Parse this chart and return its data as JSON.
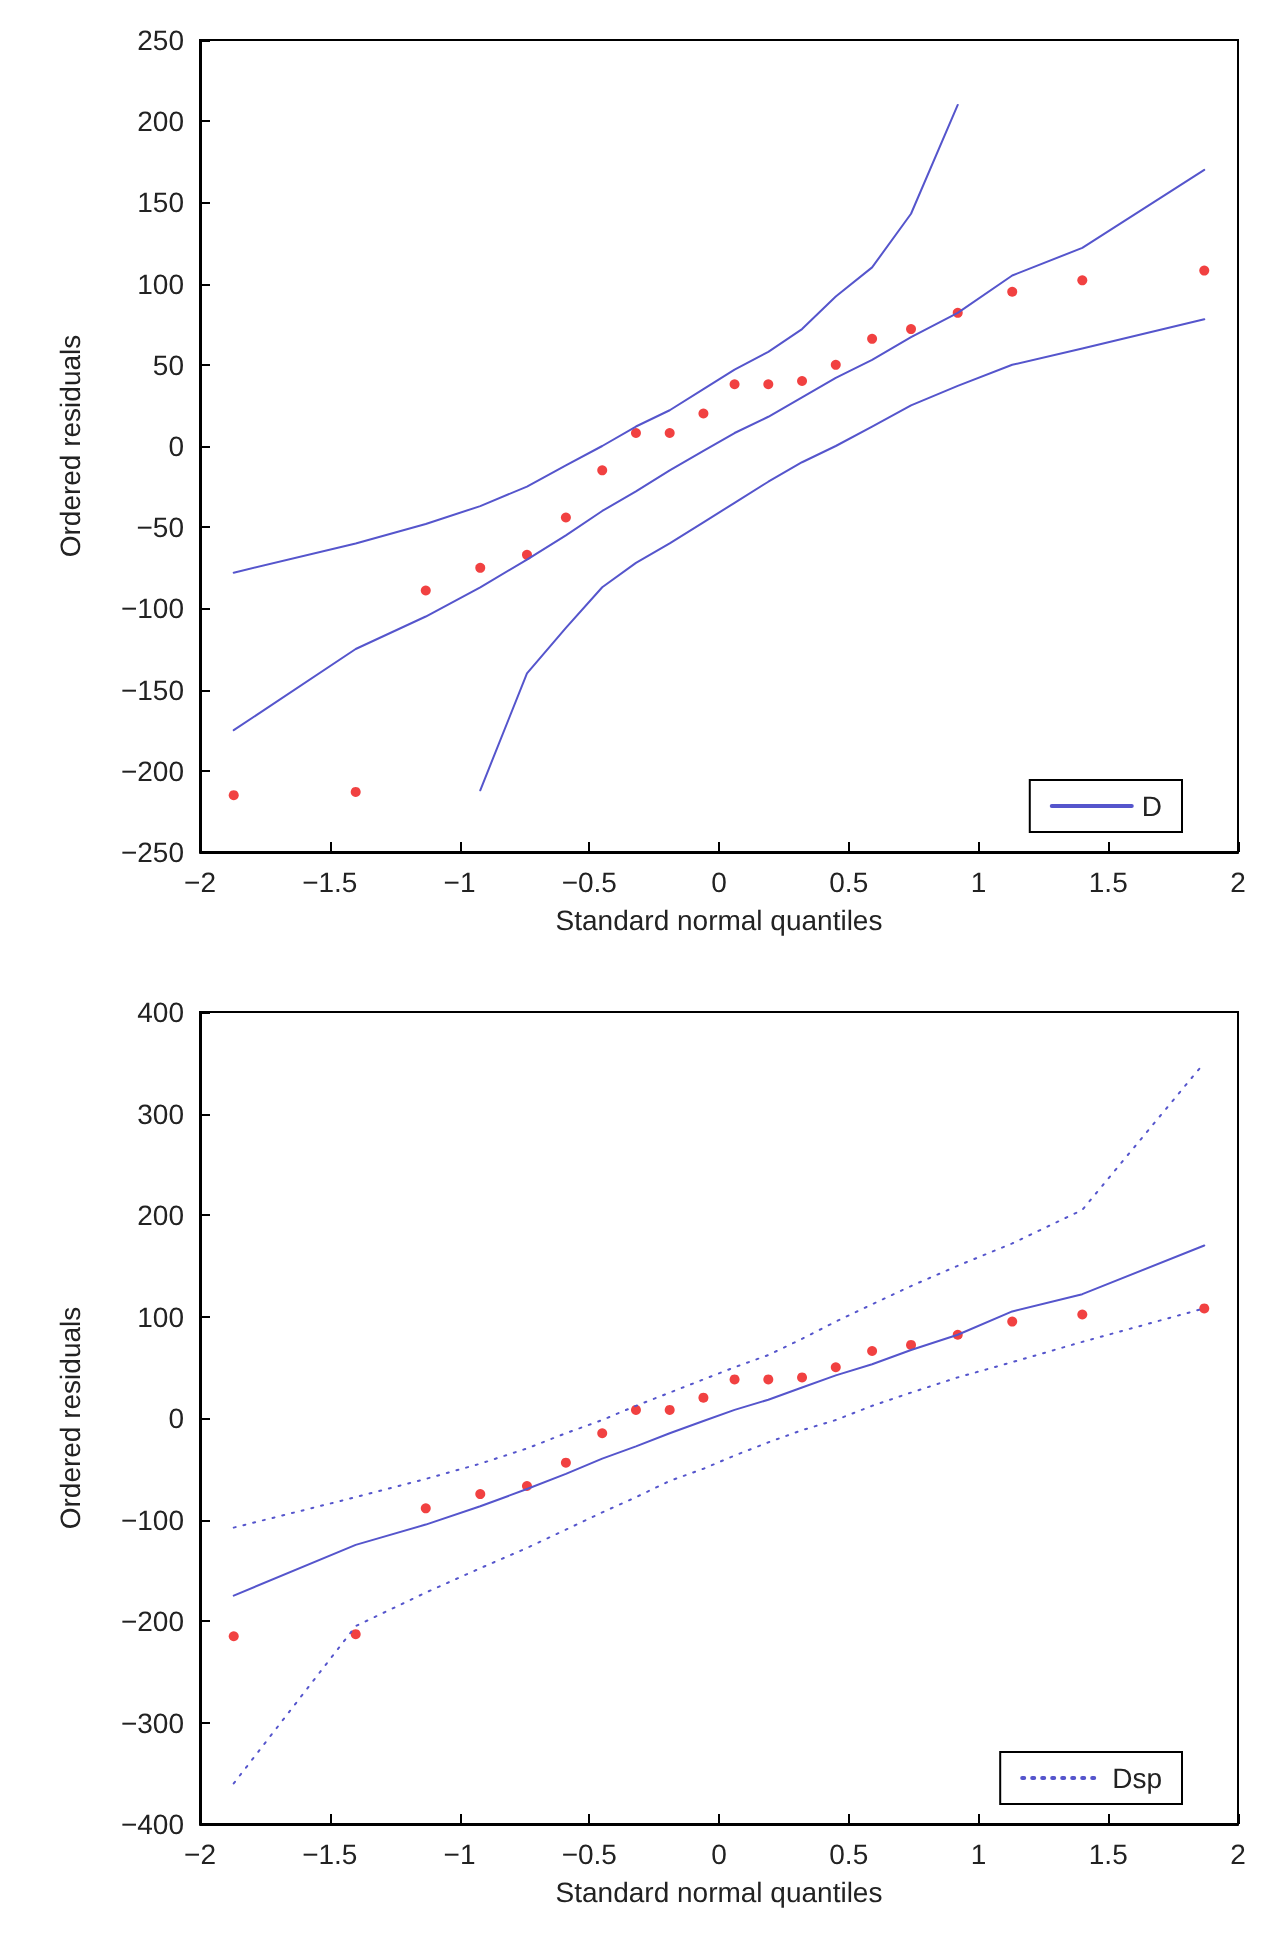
{
  "chart_data": [
    {
      "type": "scatter",
      "xlabel": "Standard normal quantiles",
      "ylabel": "Ordered residuals",
      "xlim": [
        -2,
        2
      ],
      "xticks": [
        -2,
        -1.5,
        -1,
        -0.5,
        0,
        0.5,
        1,
        1.5,
        2
      ],
      "ylim": [
        -250,
        250
      ],
      "yticks": [
        -250,
        -200,
        -150,
        -100,
        -50,
        0,
        50,
        100,
        150,
        200,
        250
      ],
      "grid": false,
      "legend": "bottom right",
      "series": [
        {
          "color": "#ee1111",
          "marker": "circle",
          "x": [
            -1.87,
            -1.4,
            -1.13,
            -0.92,
            -0.74,
            -0.59,
            -0.45,
            -0.32,
            -0.19,
            -0.06,
            0.06,
            0.19,
            0.32,
            0.45,
            0.59,
            0.74,
            0.92,
            1.13,
            1.4,
            1.87
          ],
          "values": [
            -215,
            -213,
            -89,
            -75,
            -67,
            -44,
            -15,
            8,
            8,
            20,
            38,
            38,
            40,
            50,
            66,
            72,
            82,
            95,
            102,
            108
          ]
        },
        {
          "type": "line",
          "color": "#5555cc",
          "marker": "none",
          "line_style": "solid",
          "x": [
            -1.87,
            -1.4,
            -1.13,
            -0.92,
            -0.74,
            -0.59,
            -0.45,
            -0.32,
            -0.19,
            -0.06,
            0.06,
            0.19,
            0.32,
            0.45,
            0.59,
            0.74,
            0.92,
            1.13,
            1.4,
            1.87
          ],
          "values": [
            -175,
            -125,
            -105,
            -87,
            -70,
            -55,
            -40,
            -28,
            -15,
            -3,
            8,
            18,
            30,
            42,
            53,
            67,
            82,
            105,
            122,
            170
          ]
        },
        {
          "type": "line",
          "name": "D",
          "color": "#5555cc",
          "marker": "none",
          "line_style": "solid",
          "x": [
            -1.87,
            -1.4,
            -1.13,
            -0.92,
            -0.74,
            -0.59,
            -0.45,
            -0.32,
            -0.19,
            -0.06,
            0.06,
            0.19,
            0.32,
            0.45,
            0.59,
            0.74,
            0.92
          ],
          "values": [
            -78,
            -60,
            -48,
            -37,
            -25,
            -12,
            0,
            12,
            22,
            35,
            47,
            58,
            72,
            92,
            110,
            143,
            210
          ]
        },
        {
          "type": "line",
          "color": "#5555cc",
          "marker": "none",
          "line_style": "solid",
          "x": [
            -0.92,
            -0.74,
            -0.59,
            -0.45,
            -0.32,
            -0.19,
            -0.06,
            0.06,
            0.19,
            0.32,
            0.45,
            0.59,
            0.74,
            0.92,
            1.13,
            1.4,
            1.87
          ],
          "values": [
            -212,
            -140,
            -112,
            -87,
            -72,
            -60,
            -47,
            -35,
            -22,
            -10,
            0,
            12,
            25,
            37,
            50,
            60,
            78
          ]
        }
      ]
    },
    {
      "type": "scatter",
      "xlabel": "Standard normal quantiles",
      "ylabel": "Ordered residuals",
      "xlim": [
        -2,
        2
      ],
      "xticks": [
        -2,
        -1.5,
        -1,
        -0.5,
        0,
        0.5,
        1,
        1.5,
        2
      ],
      "ylim": [
        -400,
        400
      ],
      "yticks": [
        -400,
        -300,
        -200,
        -100,
        0,
        100,
        200,
        300,
        400
      ],
      "grid": false,
      "legend": "bottom right",
      "series": [
        {
          "color": "#ee1111",
          "marker": "circle",
          "x": [
            -1.87,
            -1.4,
            -1.13,
            -0.92,
            -0.74,
            -0.59,
            -0.45,
            -0.32,
            -0.19,
            -0.06,
            0.06,
            0.19,
            0.32,
            0.45,
            0.59,
            0.74,
            0.92,
            1.13,
            1.4,
            1.87
          ],
          "values": [
            -215,
            -213,
            -89,
            -75,
            -67,
            -44,
            -15,
            8,
            8,
            20,
            38,
            38,
            40,
            50,
            66,
            72,
            82,
            95,
            102,
            108
          ]
        },
        {
          "type": "line",
          "color": "#5555cc",
          "marker": "none",
          "line_style": "solid",
          "x": [
            -1.87,
            -1.4,
            -1.13,
            -0.92,
            -0.74,
            -0.59,
            -0.45,
            -0.32,
            -0.19,
            -0.06,
            0.06,
            0.19,
            0.32,
            0.45,
            0.59,
            0.74,
            0.92,
            1.13,
            1.4,
            1.87
          ],
          "values": [
            -175,
            -125,
            -105,
            -87,
            -70,
            -55,
            -40,
            -28,
            -15,
            -3,
            8,
            18,
            30,
            42,
            53,
            67,
            82,
            105,
            122,
            170
          ]
        },
        {
          "type": "line",
          "name": "Dsp",
          "color": "#5555cc",
          "marker": "none",
          "line_style": "dotted",
          "x": [
            -1.87,
            -1.4,
            -1.13,
            -0.92,
            -0.74,
            -0.59,
            -0.45,
            -0.32,
            -0.19,
            -0.06,
            0.06,
            0.19,
            0.32,
            0.45,
            0.59,
            0.74,
            0.92,
            1.13,
            1.4,
            1.87
          ],
          "values": [
            -108,
            -78,
            -60,
            -45,
            -30,
            -15,
            -2,
            12,
            25,
            38,
            50,
            62,
            78,
            95,
            112,
            130,
            150,
            172,
            205,
            350
          ]
        },
        {
          "type": "line",
          "color": "#5555cc",
          "marker": "none",
          "line_style": "dotted",
          "x": [
            -1.87,
            -1.4,
            -1.13,
            -0.92,
            -0.74,
            -0.59,
            -0.45,
            -0.32,
            -0.19,
            -0.06,
            0.06,
            0.19,
            0.32,
            0.45,
            0.59,
            0.74,
            0.92,
            1.13,
            1.4,
            1.87
          ],
          "values": [
            -360,
            -205,
            -172,
            -148,
            -128,
            -110,
            -93,
            -78,
            -62,
            -50,
            -37,
            -24,
            -12,
            -2,
            12,
            25,
            40,
            55,
            75,
            108
          ]
        }
      ]
    }
  ]
}
